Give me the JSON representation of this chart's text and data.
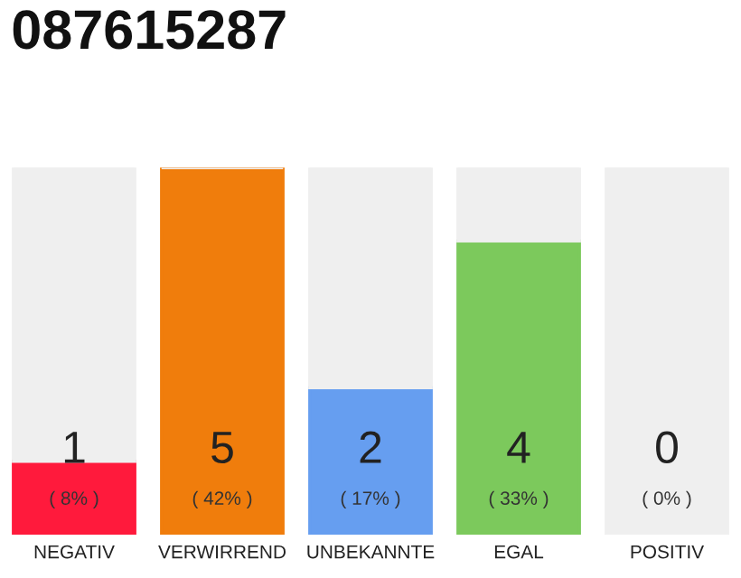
{
  "chart_data": {
    "type": "bar",
    "title": "087615287",
    "stacked": true,
    "categories": [
      "NEGATIV",
      "VERWIRREND",
      "UNBEKANNTE",
      "EGAL",
      "POSITIV"
    ],
    "series": [
      {
        "colors": [
          "#ff1a3c",
          "#f07d0c",
          "#669ef0",
          "#7cc95c",
          "#2ea84a"
        ],
        "values": [
          1,
          5,
          2,
          4,
          0
        ],
        "value_labels": [
          "1\n( 8% )",
          "5\n( 42% )",
          "2\n( 17% )",
          "4\n( 33% )",
          "0\n( 0% )"
        ]
      },
      {
        "color": "#efefef",
        "values": [
          4,
          0,
          3,
          1,
          5
        ]
      }
    ]
  }
}
